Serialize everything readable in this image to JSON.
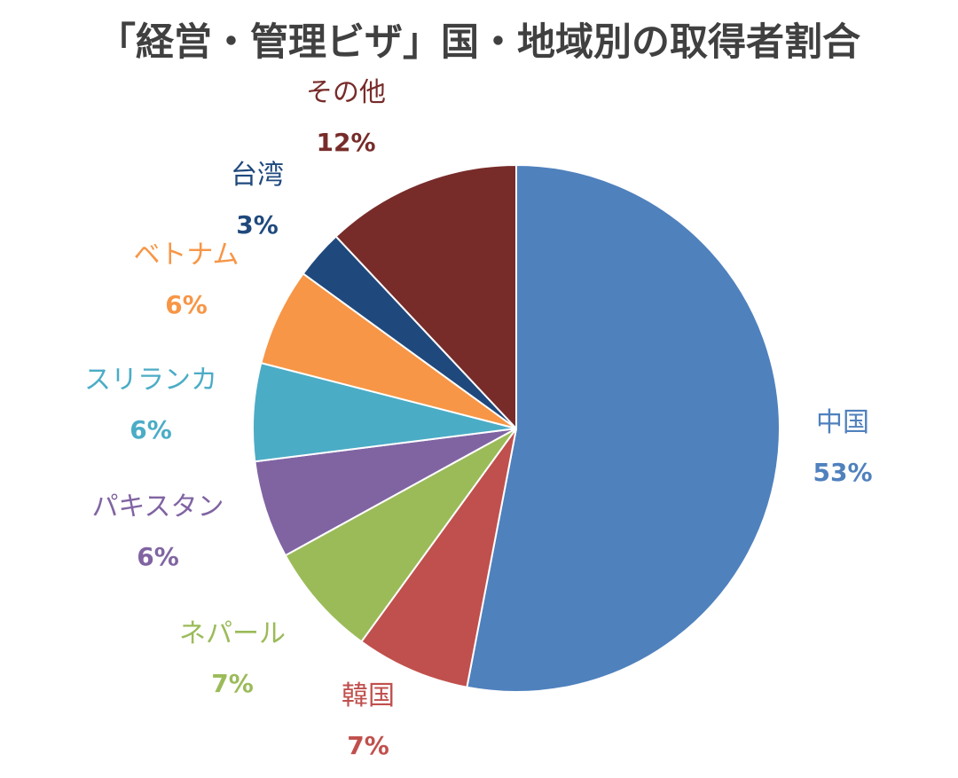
{
  "chart_data": {
    "type": "pie",
    "title": "「経営・管理ビザ」国・地域別の取得者割合",
    "slices": [
      {
        "label": "中国",
        "value": 53,
        "pct_label": "53%",
        "color": "#4f81bd"
      },
      {
        "label": "韓国",
        "value": 7,
        "pct_label": "7%",
        "color": "#c0504d"
      },
      {
        "label": "ネパール",
        "value": 7,
        "pct_label": "7%",
        "color": "#9bbb59"
      },
      {
        "label": "パキスタン",
        "value": 6,
        "pct_label": "6%",
        "color": "#8064a2"
      },
      {
        "label": "スリランカ",
        "value": 6,
        "pct_label": "6%",
        "color": "#4bacc6"
      },
      {
        "label": "ベトナム",
        "value": 6,
        "pct_label": "6%",
        "color": "#f79646"
      },
      {
        "label": "台湾",
        "value": 3,
        "pct_label": "3%",
        "color": "#1f497d"
      },
      {
        "label": "その他",
        "value": 12,
        "pct_label": "12%",
        "color": "#772c2a"
      }
    ],
    "label_colors": {
      "中国": "#4f81bd",
      "韓国": "#c0504d",
      "ネパール": "#9bbb59",
      "パキスタン": "#8064a2",
      "スリランカ": "#4bacc6",
      "ベトナム": "#f79646",
      "台湾": "#1f497d",
      "その他": "#772c2a"
    },
    "legend": "none",
    "start": "top, clockwise"
  }
}
